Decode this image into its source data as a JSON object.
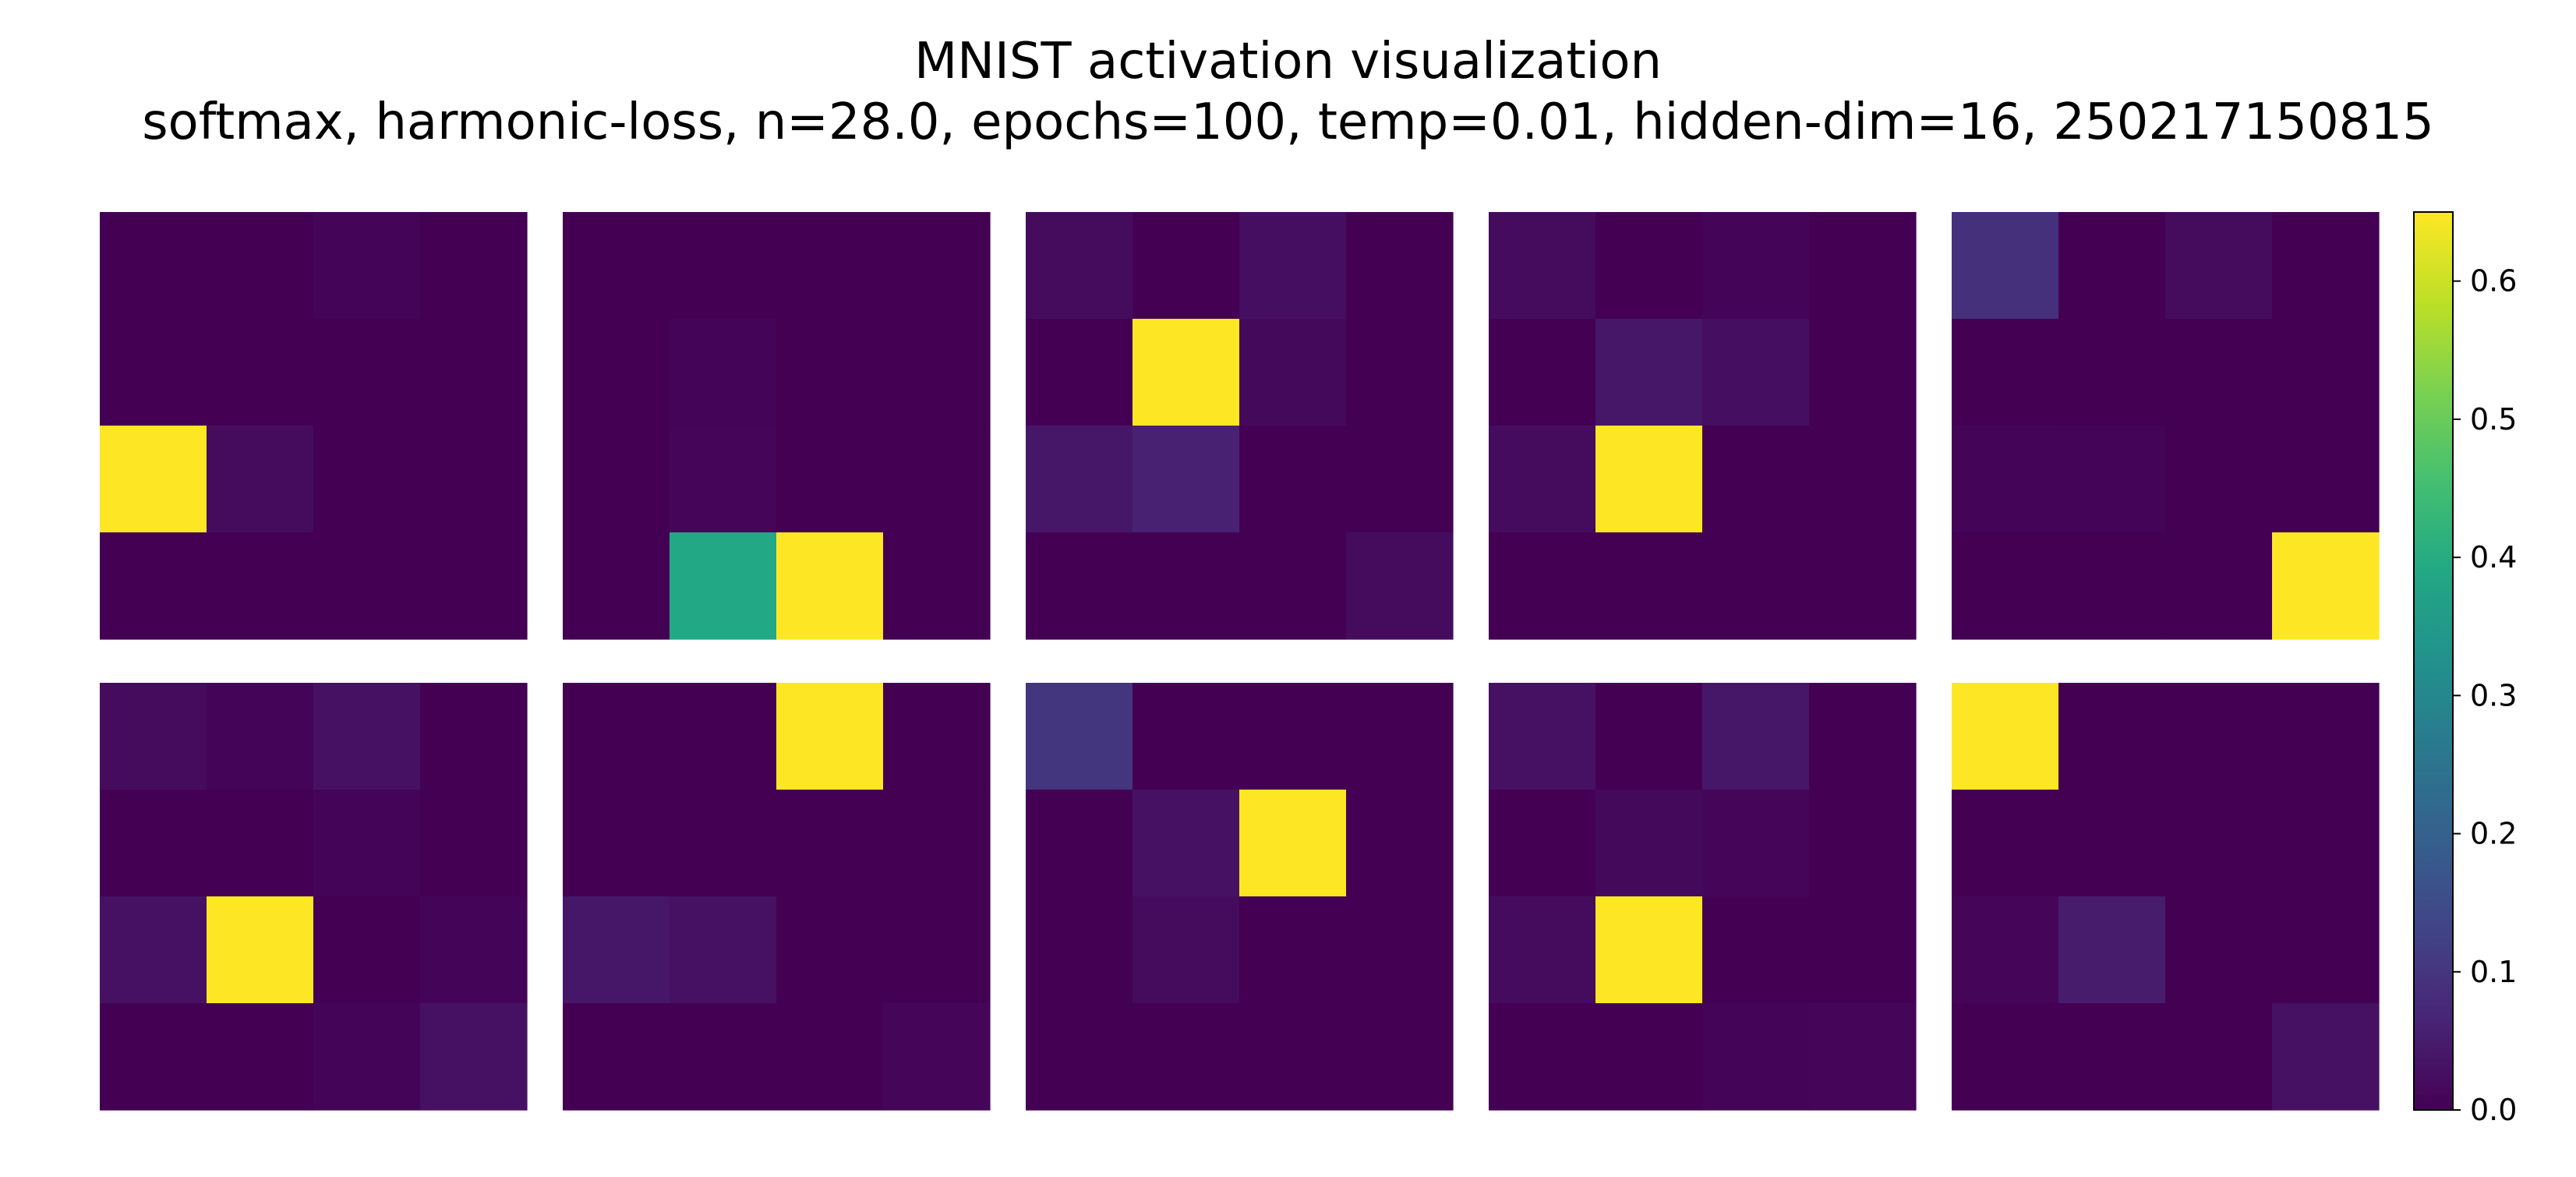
{
  "title": "MNIST activation visualization",
  "subtitle": "softmax, harmonic-loss, n=28.0, epochs=100, temp=0.01, hidden-dim=16, 250217150815",
  "chart_data": {
    "type": "heatmap",
    "title": "MNIST activation visualization",
    "subtitle": "softmax, harmonic-loss, n=28.0, epochs=100, temp=0.01, hidden-dim=16, 250217150815",
    "colormap": "viridis",
    "layout": {
      "rows": 2,
      "cols": 5,
      "cell_grid": [
        4,
        4
      ]
    },
    "colorbar": {
      "range": [
        0.0,
        0.65
      ],
      "ticks": [
        0.0,
        0.1,
        0.2,
        0.3,
        0.4,
        0.5,
        0.6
      ],
      "tick_labels": [
        "0.0",
        "0.1",
        "0.2",
        "0.3",
        "0.4",
        "0.5",
        "0.6"
      ]
    },
    "panels": [
      {
        "values": [
          [
            0.0,
            0.0,
            0.005,
            0.0
          ],
          [
            0.0,
            0.0,
            0.0,
            0.0
          ],
          [
            0.65,
            0.02,
            0.0,
            0.0
          ],
          [
            0.0,
            0.0,
            0.0,
            0.0
          ]
        ]
      },
      {
        "values": [
          [
            0.0,
            0.0,
            0.0,
            0.0
          ],
          [
            0.0,
            0.005,
            0.0,
            0.0
          ],
          [
            0.0,
            0.01,
            0.0,
            0.0
          ],
          [
            0.0,
            0.39,
            0.65,
            0.0
          ]
        ]
      },
      {
        "values": [
          [
            0.02,
            0.0,
            0.025,
            0.0
          ],
          [
            0.0,
            0.65,
            0.015,
            0.0
          ],
          [
            0.04,
            0.06,
            0.0,
            0.0
          ],
          [
            0.0,
            0.0,
            0.0,
            0.02
          ]
        ]
      },
      {
        "values": [
          [
            0.02,
            0.0,
            0.005,
            0.0
          ],
          [
            0.0,
            0.04,
            0.025,
            0.0
          ],
          [
            0.02,
            0.65,
            0.0,
            0.0
          ],
          [
            0.0,
            0.0,
            0.0,
            0.0
          ]
        ]
      },
      {
        "values": [
          [
            0.09,
            0.0,
            0.02,
            0.0
          ],
          [
            0.0,
            0.0,
            0.0,
            0.0
          ],
          [
            0.008,
            0.005,
            0.0,
            0.0
          ],
          [
            0.0,
            0.0,
            0.0,
            0.65
          ]
        ]
      },
      {
        "values": [
          [
            0.02,
            0.005,
            0.03,
            0.0
          ],
          [
            0.0,
            0.0,
            0.005,
            0.0
          ],
          [
            0.03,
            0.65,
            0.0,
            0.005
          ],
          [
            0.0,
            0.0,
            0.005,
            0.03
          ]
        ]
      },
      {
        "values": [
          [
            0.0,
            0.0,
            0.65,
            0.0
          ],
          [
            0.0,
            0.0,
            0.0,
            0.0
          ],
          [
            0.04,
            0.03,
            0.0,
            0.0
          ],
          [
            0.0,
            0.0,
            0.0,
            0.01
          ]
        ]
      },
      {
        "values": [
          [
            0.1,
            0.0,
            0.0,
            0.0
          ],
          [
            0.0,
            0.03,
            0.65,
            0.0
          ],
          [
            0.0,
            0.02,
            0.0,
            0.0
          ],
          [
            0.0,
            0.0,
            0.0,
            0.0
          ]
        ]
      },
      {
        "values": [
          [
            0.03,
            0.0,
            0.04,
            0.0
          ],
          [
            0.0,
            0.015,
            0.01,
            0.0
          ],
          [
            0.02,
            0.65,
            0.0,
            0.0
          ],
          [
            0.0,
            0.0,
            0.005,
            0.01
          ]
        ]
      },
      {
        "values": [
          [
            0.65,
            0.0,
            0.0,
            0.0
          ],
          [
            0.0,
            0.0,
            0.0,
            0.0
          ],
          [
            0.01,
            0.05,
            0.0,
            0.0
          ],
          [
            0.0,
            0.0,
            0.0,
            0.03
          ]
        ]
      }
    ]
  }
}
